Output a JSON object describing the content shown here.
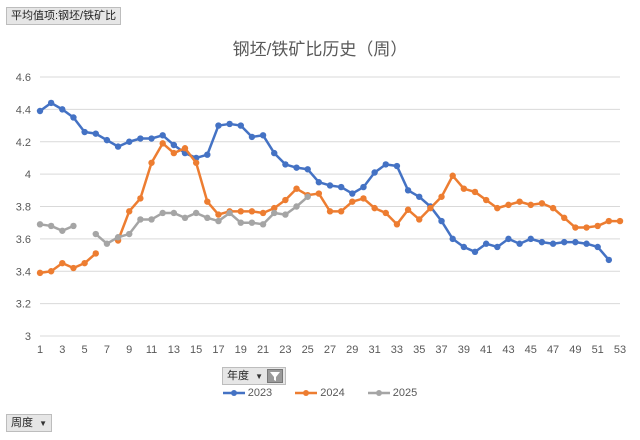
{
  "pivot_field": {
    "label": "平均值项:钢坯/铁矿比"
  },
  "filters": {
    "year": {
      "label": "年度"
    },
    "week": {
      "label": "周度"
    }
  },
  "colors": {
    "s2023": "#4472c4",
    "s2024": "#ed7d31",
    "s2025": "#a5a5a5",
    "grid": "#d9d9d9",
    "text": "#595959"
  },
  "chart_data": {
    "type": "line",
    "title": "钢坯/铁矿比历史（周）",
    "xlabel": "",
    "ylabel": "",
    "ylim": [
      3,
      4.6
    ],
    "yticks": [
      "3",
      "3.2",
      "3.4",
      "3.6",
      "3.8",
      "4",
      "4.2",
      "4.4",
      "4.6"
    ],
    "xticks": [
      "1",
      "3",
      "5",
      "7",
      "9",
      "11",
      "13",
      "15",
      "17",
      "19",
      "21",
      "23",
      "25",
      "27",
      "29",
      "31",
      "33",
      "35",
      "37",
      "39",
      "41",
      "43",
      "45",
      "47",
      "49",
      "51",
      "53"
    ],
    "xlim": [
      1,
      53
    ],
    "grid": true,
    "legend": "bottom",
    "series": [
      {
        "name": "2023",
        "color": "#4472c4",
        "values": [
          4.39,
          4.44,
          4.4,
          4.35,
          4.26,
          4.25,
          4.21,
          4.17,
          4.2,
          4.22,
          4.22,
          4.24,
          4.18,
          4.13,
          4.1,
          4.12,
          4.3,
          4.31,
          4.3,
          4.23,
          4.24,
          4.13,
          4.06,
          4.04,
          4.03,
          3.95,
          3.93,
          3.92,
          3.88,
          3.92,
          4.01,
          4.06,
          4.05,
          3.9,
          3.86,
          3.8,
          3.71,
          3.6,
          3.55,
          3.52,
          3.57,
          3.55,
          3.6,
          3.57,
          3.6,
          3.58,
          3.57,
          3.58,
          3.58,
          3.57,
          3.55,
          3.47
        ]
      },
      {
        "name": "2024",
        "color": "#ed7d31",
        "values": [
          3.39,
          3.4,
          3.45,
          3.42,
          3.45,
          3.51,
          null,
          3.59,
          3.77,
          3.85,
          4.07,
          4.19,
          4.13,
          4.16,
          4.07,
          3.83,
          3.75,
          3.77,
          3.77,
          3.77,
          3.76,
          3.79,
          3.84,
          3.91,
          3.87,
          3.88,
          3.77,
          3.77,
          3.83,
          3.85,
          3.79,
          3.76,
          3.69,
          3.78,
          3.72,
          3.79,
          3.86,
          3.99,
          3.91,
          3.89,
          3.84,
          3.79,
          3.81,
          3.83,
          3.81,
          3.82,
          3.79,
          3.73,
          3.67,
          3.67,
          3.68,
          3.71,
          3.71
        ]
      },
      {
        "name": "2025",
        "color": "#a5a5a5",
        "values": [
          3.69,
          3.68,
          3.65,
          3.68,
          null,
          3.63,
          3.57,
          3.61,
          3.63,
          3.72,
          3.72,
          3.76,
          3.76,
          3.73,
          3.76,
          3.73,
          3.71,
          3.76,
          3.7,
          3.7,
          3.69,
          3.76,
          3.75,
          3.8,
          3.86
        ]
      }
    ]
  }
}
